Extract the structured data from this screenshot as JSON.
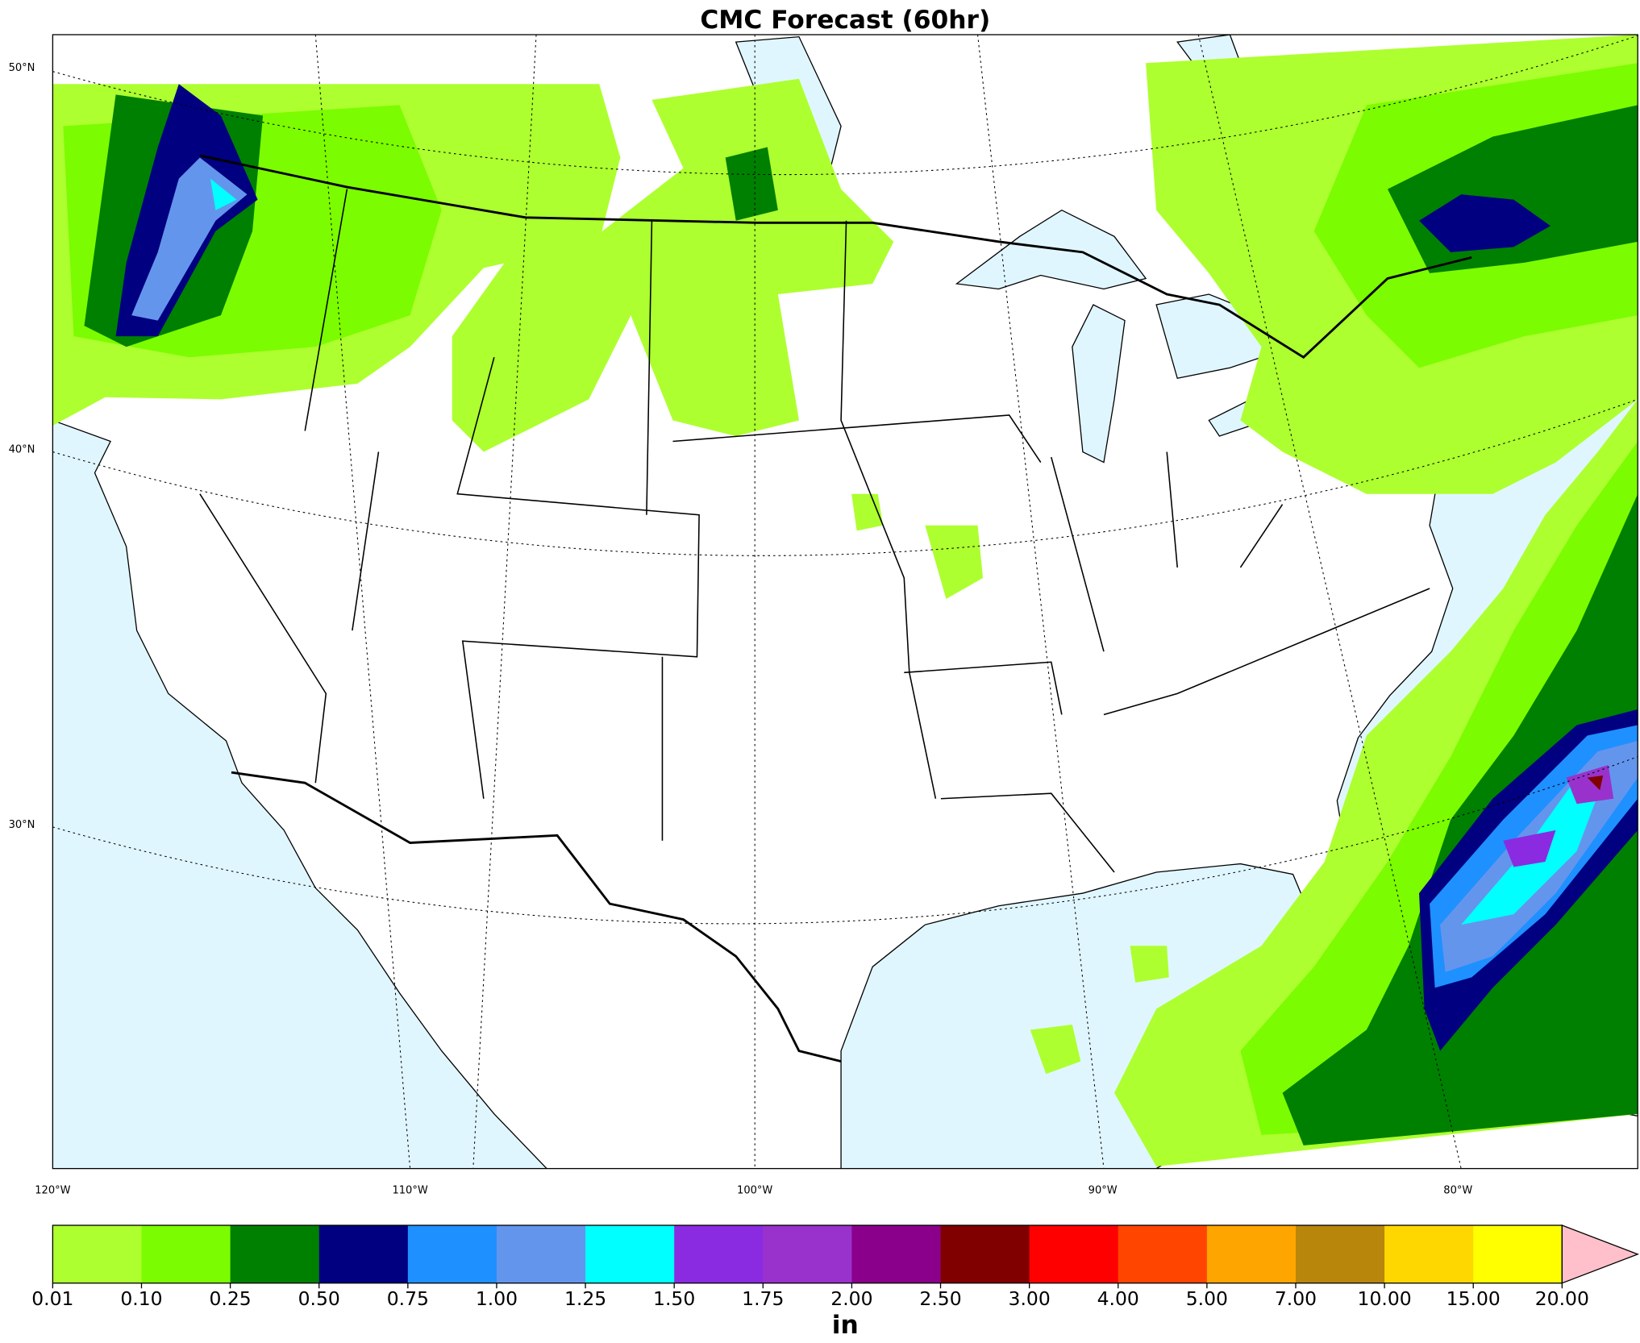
{
  "title": "CMC Forecast (60hr)",
  "lat_labels": [
    "50°N",
    "40°N",
    "30°N"
  ],
  "lon_labels": [
    "120°W",
    "110°W",
    "100°W",
    "90°W",
    "80°W"
  ],
  "colorbar": {
    "levels": [
      0.01,
      {
        "value": 0.1,
        "label": "0.10"
      },
      0.25,
      {
        "value": 0.5,
        "label": "0.50"
      },
      0.75,
      {
        "value": 1,
        "label": "1.00"
      },
      1.25,
      {
        "value": 1.5,
        "label": "1.50"
      },
      1.75,
      {
        "value": 2,
        "label": "2.00"
      },
      {
        "value": 2.5,
        "label": "2.50"
      },
      {
        "value": 3,
        "label": "3.00"
      },
      {
        "value": 4,
        "label": "4.00"
      },
      {
        "value": 5,
        "label": "5.00"
      },
      {
        "value": 7,
        "label": "7.00"
      },
      {
        "value": 10,
        "label": "10.00"
      },
      {
        "value": 15,
        "label": "15.00"
      },
      {
        "value": 20,
        "label": "20.00"
      }
    ],
    "colors": [
      "#adff2f",
      "#7cfc00",
      "#008000",
      "#000080",
      "#1e90ff",
      "#6495ed",
      "#00ffff",
      "#8a2be2",
      "#9932cc",
      "#8b008b",
      "#800000",
      "#ff0000",
      "#ff4500",
      "#ffa500",
      "#b8860b",
      "#ffd700",
      "#ffff00"
    ],
    "extend_color": "#ffc0cb",
    "unit": "in"
  }
}
